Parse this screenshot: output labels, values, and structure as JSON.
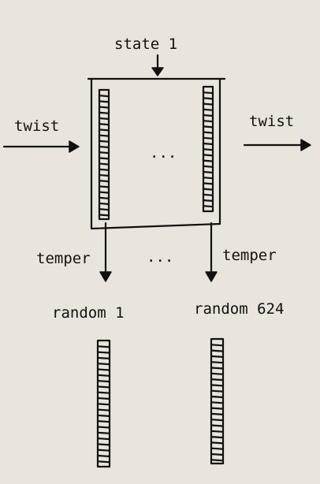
{
  "labels": {
    "state": "state 1",
    "twist_in": "twist",
    "twist_out": "twist",
    "ellipsis_state": "...",
    "ellipsis_temper": "...",
    "temper_left": "temper",
    "temper_right": "temper",
    "random_left": "random 1",
    "random_right": "random 624"
  },
  "colors": {
    "paper": "#e9e4dc",
    "ink": "#111111"
  }
}
